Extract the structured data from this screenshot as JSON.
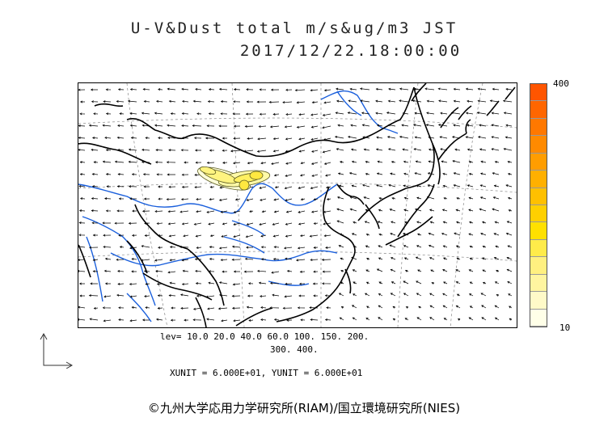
{
  "title": "U-V&Dust total m/s&ug/m3 JST",
  "timestamp": "2017/12/22.18:00:00",
  "colorbar": {
    "max_label": "400",
    "min_label": "10",
    "colors": [
      "#ffffe8",
      "#fffac8",
      "#fff5a0",
      "#fff080",
      "#ffeb4a",
      "#ffe000",
      "#ffd000",
      "#ffc000",
      "#ffb000",
      "#ff9d00",
      "#ff8a00",
      "#ff7800",
      "#ff6600",
      "#ff5500"
    ]
  },
  "levels": {
    "line1": "lev= 10.0 20.0 40.0 60.0 100. 150. 200.",
    "line2": "300. 400."
  },
  "units_text": "XUNIT = 6.000E+01, YUNIT = 6.000E+01",
  "copyright": "©九州大学応用力学研究所(RIAM)/国立環境研究所(NIES)"
}
